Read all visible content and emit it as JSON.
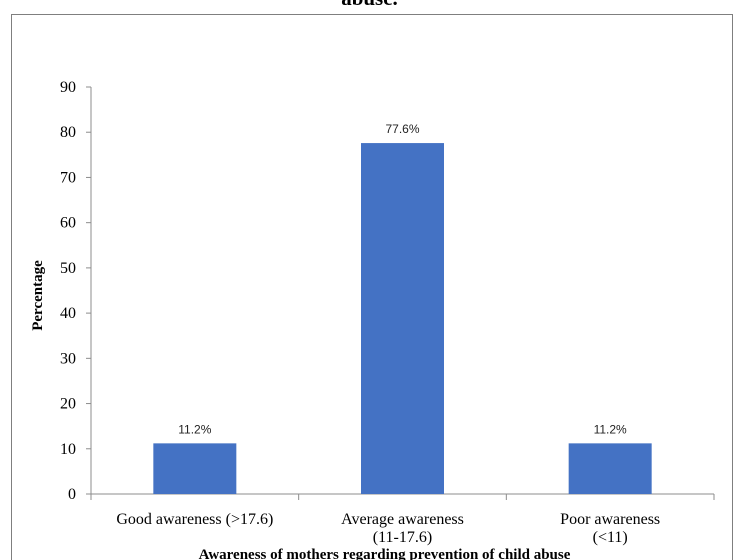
{
  "header": {
    "title_fragment": "abuse."
  },
  "chart_data": {
    "type": "bar",
    "categories": [
      [
        "Good awareness (>17.6)"
      ],
      [
        "Average awareness",
        "(11-17.6)"
      ],
      [
        "Poor awareness",
        "(<11)"
      ]
    ],
    "values": [
      11.2,
      77.6,
      11.2
    ],
    "data_labels": [
      "11.2%",
      "77.6%",
      "11.2%"
    ],
    "xlabel": "Awareness of mothers regarding prevention of child abuse",
    "ylabel": "Percentage",
    "ylim": [
      0,
      90
    ],
    "yticks": [
      "0",
      "10",
      "20",
      "30",
      "40",
      "50",
      "60",
      "70",
      "80",
      "90"
    ],
    "grid": false,
    "legend": "none",
    "bar_color": "#4472c4"
  }
}
